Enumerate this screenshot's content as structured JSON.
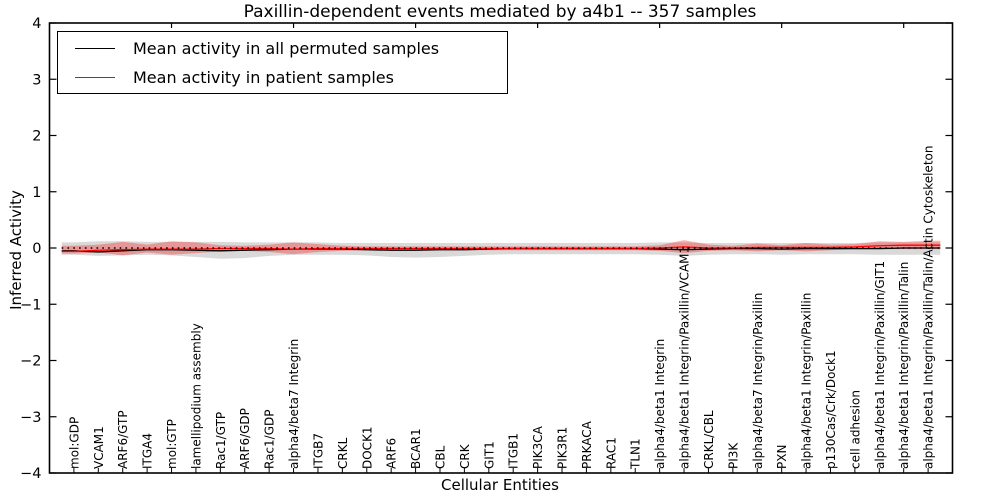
{
  "title": "Paxillin-dependent events mediated by a4b1 -- 357 samples",
  "legend": {
    "items": [
      {
        "label": "Mean activity in all permuted samples",
        "color": "#000000"
      },
      {
        "label": "Mean activity in patient samples",
        "color": "#ff0000"
      }
    ]
  },
  "chart_data": {
    "type": "line",
    "title": "Paxillin-dependent events mediated by a4b1 -- 357 samples",
    "xlabel": "Cellular Entities",
    "ylabel": "Inferred Activity",
    "ylim": [
      -4,
      4
    ],
    "yticks": [
      4,
      3,
      2,
      1,
      0,
      -1,
      -2,
      -3,
      -4
    ],
    "xticks_top": [
      5,
      10,
      15,
      20,
      25,
      30,
      35
    ],
    "grid": false,
    "legend_position": "upper left",
    "categories": [
      "mol:GDP",
      "VCAM1",
      "ARF6/GTP",
      "ITGA4",
      "mol:GTP",
      "lamellipodium assembly",
      "Rac1/GTP",
      "ARF6/GDP",
      "Rac1/GDP",
      "alpha4/beta7 Integrin",
      "ITGB7",
      "CRKL",
      "DOCK1",
      "ARF6",
      "BCAR1",
      "CBL",
      "CRK",
      "GIT1",
      "ITGB1",
      "PIK3CA",
      "PIK3R1",
      "PRKACA",
      "RAC1",
      "TLN1",
      "alpha4/beta1 Integrin",
      "alpha4/beta1 Integrin/Paxillin/VCAM1",
      "CRKL/CBL",
      "PI3K",
      "alpha4/beta7 Integrin/Paxillin",
      "PXN",
      "alpha4/beta1 Integrin/Paxillin",
      "p130Cas/Crk/Dock1",
      "cell adhesion",
      "alpha4/beta1 Integrin/Paxillin/GIT1",
      "alpha4/beta1 Integrin/Paxillin/Talin",
      "alpha4/beta1 Integrin/Paxillin/Talin/Actin Cytoskeleton"
    ],
    "series": [
      {
        "name": "Mean activity in all permuted samples",
        "color": "#000000",
        "style": "solid",
        "values": [
          -0.05,
          -0.07,
          -0.05,
          -0.03,
          -0.03,
          -0.04,
          -0.05,
          -0.04,
          -0.03,
          -0.02,
          -0.02,
          -0.02,
          -0.03,
          -0.04,
          -0.04,
          -0.03,
          -0.03,
          -0.02,
          -0.01,
          -0.01,
          -0.01,
          -0.01,
          -0.01,
          -0.01,
          -0.02,
          -0.03,
          -0.02,
          -0.01,
          -0.01,
          -0.02,
          -0.01,
          -0.01,
          -0.01,
          -0.01,
          0.0,
          0.0
        ]
      },
      {
        "name": "Mean activity in patient samples",
        "color": "#ff0000",
        "style": "solid",
        "values": [
          -0.06,
          -0.04,
          -0.03,
          -0.02,
          -0.02,
          -0.02,
          -0.01,
          -0.01,
          -0.01,
          -0.02,
          -0.01,
          -0.01,
          -0.01,
          -0.01,
          -0.01,
          -0.01,
          -0.01,
          -0.01,
          -0.01,
          -0.01,
          -0.01,
          -0.01,
          -0.01,
          -0.01,
          0.0,
          0.02,
          0.0,
          0.0,
          0.01,
          0.01,
          0.01,
          0.01,
          0.02,
          0.04,
          0.05,
          0.05
        ]
      }
    ],
    "baseline": {
      "y": 0,
      "style": "dotted",
      "color": "#000000"
    },
    "bands": [
      {
        "name": "permuted-samples-range",
        "color": "#aaaaaa",
        "opacity": 0.45,
        "upper": [
          0.1,
          0.12,
          0.12,
          0.11,
          0.11,
          0.11,
          0.11,
          0.1,
          0.1,
          0.1,
          0.1,
          0.09,
          0.09,
          0.09,
          0.09,
          0.09,
          0.09,
          0.09,
          0.09,
          0.09,
          0.09,
          0.09,
          0.09,
          0.09,
          0.1,
          0.1,
          0.09,
          0.09,
          0.09,
          0.09,
          0.09,
          0.09,
          0.09,
          0.1,
          0.1,
          0.1
        ],
        "lower": [
          -0.12,
          -0.14,
          -0.13,
          -0.12,
          -0.13,
          -0.16,
          -0.19,
          -0.18,
          -0.14,
          -0.12,
          -0.12,
          -0.12,
          -0.13,
          -0.16,
          -0.17,
          -0.16,
          -0.14,
          -0.12,
          -0.11,
          -0.11,
          -0.11,
          -0.11,
          -0.11,
          -0.11,
          -0.12,
          -0.14,
          -0.12,
          -0.11,
          -0.11,
          -0.12,
          -0.11,
          -0.11,
          -0.11,
          -0.12,
          -0.12,
          -0.12
        ]
      },
      {
        "name": "patient-samples-range",
        "color": "#ff0000",
        "opacity": 0.3,
        "upper": [
          0.04,
          0.06,
          0.11,
          0.06,
          0.12,
          0.1,
          0.05,
          0.04,
          0.06,
          0.1,
          0.07,
          0.04,
          0.03,
          0.03,
          0.03,
          0.03,
          0.03,
          0.03,
          0.03,
          0.03,
          0.03,
          0.03,
          0.03,
          0.03,
          0.05,
          0.14,
          0.06,
          0.04,
          0.08,
          0.05,
          0.09,
          0.06,
          0.07,
          0.12,
          0.11,
          0.13
        ],
        "lower": [
          -0.1,
          -0.08,
          -0.13,
          -0.08,
          -0.12,
          -0.09,
          -0.06,
          -0.05,
          -0.07,
          -0.11,
          -0.07,
          -0.05,
          -0.04,
          -0.04,
          -0.04,
          -0.04,
          -0.04,
          -0.04,
          -0.04,
          -0.04,
          -0.04,
          -0.04,
          -0.04,
          -0.04,
          -0.05,
          -0.09,
          -0.05,
          -0.04,
          -0.06,
          -0.04,
          -0.06,
          -0.04,
          -0.02,
          -0.02,
          -0.02,
          -0.02
        ]
      }
    ]
  }
}
